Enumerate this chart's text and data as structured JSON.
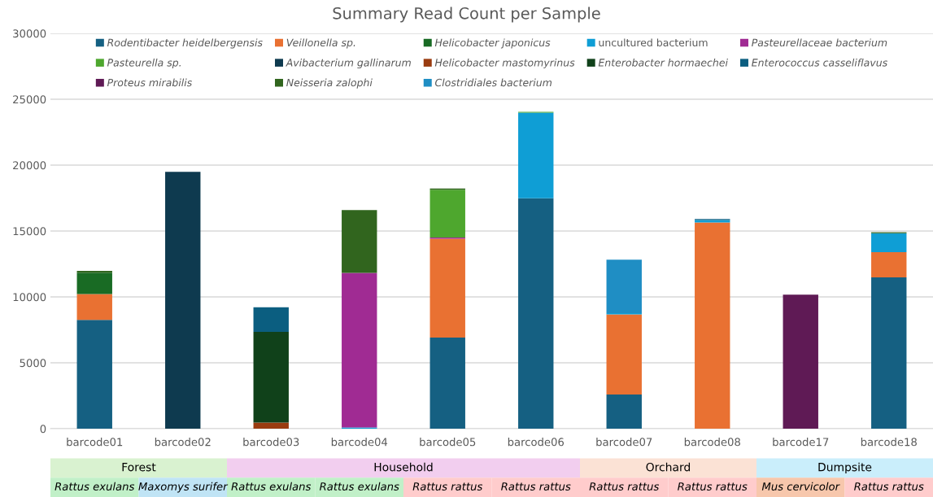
{
  "chart_data": {
    "type": "bar",
    "stacked": true,
    "title": "Summary Read Count per Sample",
    "categories": [
      "barcode01",
      "barcode02",
      "barcode03",
      "barcode04",
      "barcode05",
      "barcode06",
      "barcode07",
      "barcode08",
      "barcode17",
      "barcode18"
    ],
    "series": [
      {
        "name": "Rodentibacter heidelbergensis",
        "color": "#156082",
        "values": [
          8260,
          null,
          null,
          null,
          6910,
          17480,
          2600,
          null,
          null,
          11480
        ]
      },
      {
        "name": "Veillonella sp.",
        "color": "#e97132",
        "values": [
          1950,
          null,
          null,
          null,
          7500,
          null,
          6070,
          15650,
          null,
          1910
        ]
      },
      {
        "name": "Helicobacter japonicus",
        "color": "#196b24",
        "values": [
          1630,
          null,
          null,
          null,
          null,
          null,
          null,
          null,
          null,
          null
        ]
      },
      {
        "name": "uncultured bacterium",
        "color": "#0f9ed5",
        "values": [
          null,
          null,
          null,
          100,
          null,
          6500,
          100,
          180,
          null,
          1440
        ]
      },
      {
        "name": "Pasteurellaceae bacterium",
        "color": "#a02b93",
        "values": [
          null,
          null,
          null,
          11720,
          100,
          null,
          null,
          null,
          null,
          null
        ]
      },
      {
        "name": "Pasteurella sp.",
        "color": "#4ea72e",
        "values": [
          null,
          null,
          null,
          null,
          3630,
          70,
          null,
          null,
          null,
          null
        ]
      },
      {
        "name": "Avibacterium gallinarum",
        "color": "#0e3a4f",
        "values": [
          null,
          19490,
          null,
          null,
          null,
          null,
          null,
          null,
          null,
          null
        ]
      },
      {
        "name": "Helicobacter mastomyrinus",
        "color": "#9a3c10",
        "values": [
          null,
          null,
          470,
          null,
          null,
          null,
          null,
          null,
          null,
          null
        ]
      },
      {
        "name": "Enterobacter hormaechei",
        "color": "#10411a",
        "values": [
          null,
          null,
          6880,
          null,
          null,
          null,
          null,
          null,
          null,
          null
        ]
      },
      {
        "name": "Enterococcus casseliflavus",
        "color": "#0b5e80",
        "values": [
          null,
          null,
          1870,
          null,
          null,
          null,
          null,
          80,
          null,
          null
        ]
      },
      {
        "name": "Proteus mirabilis",
        "color": "#5f1a55",
        "values": [
          null,
          null,
          null,
          null,
          null,
          null,
          null,
          null,
          10170,
          null
        ]
      },
      {
        "name": "Neisseria zalophi",
        "color": "#31651e",
        "values": [
          130,
          null,
          null,
          4770,
          80,
          null,
          null,
          null,
          null,
          80
        ]
      },
      {
        "name": "Clostridiales bacterium",
        "color": "#1f8ec4",
        "values": [
          null,
          null,
          null,
          null,
          null,
          null,
          4060,
          null,
          null,
          null
        ]
      }
    ],
    "ylim": [
      0,
      30000
    ],
    "yticks": [
      0,
      5000,
      10000,
      15000,
      20000,
      25000,
      30000
    ],
    "grid": "y",
    "legend": "top",
    "annotations": [
      "Forest",
      "Household",
      "Orchard",
      "Dumpsite",
      "Rattus exulans",
      "Maxomys surifer",
      "Rattus exulans",
      "Rattus exulans",
      "Rattus rattus",
      "Rattus rattus",
      "Rattus rattus",
      "Rattus rattus",
      "Mus cervicolor",
      "Rattus rattus"
    ]
  }
}
